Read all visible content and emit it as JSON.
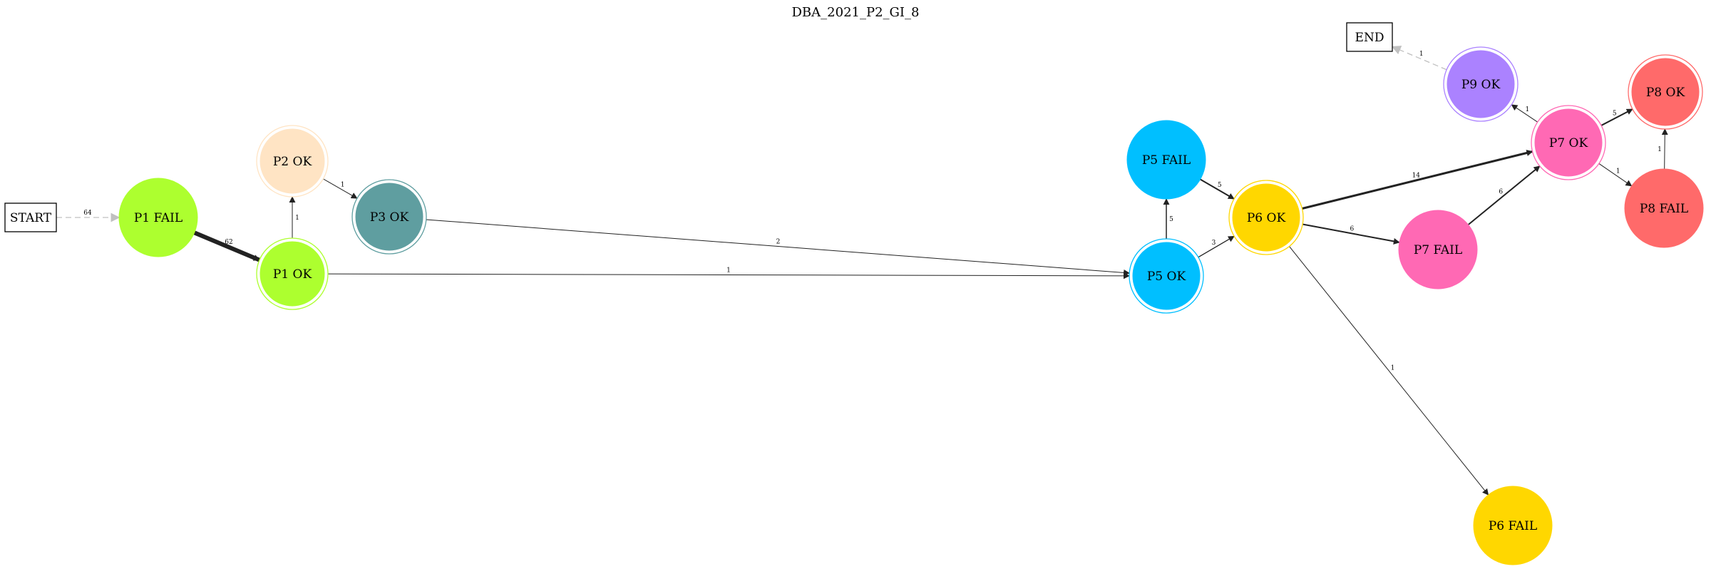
{
  "title": "DBA_2021_P2_GI_8",
  "colors": {
    "p1": "#adff2f",
    "p2": "#ffe4c4",
    "p3": "#5f9ea0",
    "p5": "#00bfff",
    "p6": "#ffd700",
    "p7": "#ff69b4",
    "p8": "#ff6a6a",
    "p9": "#ab82ff",
    "edge": "#222222",
    "terminal_edge": "#c0c0c0"
  },
  "nodes": {
    "start": {
      "label": "START",
      "shape": "box"
    },
    "end": {
      "label": "END",
      "shape": "box"
    },
    "p1_fail": {
      "label": "P1 FAIL",
      "shape": "circle",
      "color": "p1"
    },
    "p1_ok": {
      "label": "P1 OK",
      "shape": "doublecircle",
      "color": "p1"
    },
    "p2_ok": {
      "label": "P2 OK",
      "shape": "doublecircle",
      "color": "p2"
    },
    "p3_ok": {
      "label": "P3 OK",
      "shape": "doublecircle",
      "color": "p3"
    },
    "p5_fail": {
      "label": "P5 FAIL",
      "shape": "circle",
      "color": "p5"
    },
    "p5_ok": {
      "label": "P5 OK",
      "shape": "doublecircle",
      "color": "p5"
    },
    "p6_ok": {
      "label": "P6 OK",
      "shape": "doublecircle",
      "color": "p6"
    },
    "p6_fail": {
      "label": "P6 FAIL",
      "shape": "circle",
      "color": "p6"
    },
    "p7_fail": {
      "label": "P7 FAIL",
      "shape": "circle",
      "color": "p7"
    },
    "p7_ok": {
      "label": "P7 OK",
      "shape": "doublecircle",
      "color": "p7"
    },
    "p8_ok": {
      "label": "P8 OK",
      "shape": "doublecircle",
      "color": "p8"
    },
    "p8_fail": {
      "label": "P8 FAIL",
      "shape": "circle",
      "color": "p8"
    },
    "p9_ok": {
      "label": "P9 OK",
      "shape": "doublecircle",
      "color": "p9"
    }
  },
  "edges": [
    {
      "from": "start",
      "to": "p1_fail",
      "label": "64",
      "style": "dashed"
    },
    {
      "from": "p1_fail",
      "to": "p1_ok",
      "label": "62",
      "weight": 6
    },
    {
      "from": "p1_ok",
      "to": "p2_ok",
      "label": "1",
      "weight": 1
    },
    {
      "from": "p2_ok",
      "to": "p3_ok",
      "label": "1",
      "weight": 1
    },
    {
      "from": "p3_ok",
      "to": "p5_ok",
      "label": "2",
      "weight": 1
    },
    {
      "from": "p1_ok",
      "to": "p5_ok",
      "label": "1",
      "weight": 1
    },
    {
      "from": "p5_ok",
      "to": "p5_fail",
      "label": "5",
      "weight": 1.5
    },
    {
      "from": "p5_fail",
      "to": "p6_ok",
      "label": "5",
      "weight": 2
    },
    {
      "from": "p5_ok",
      "to": "p6_ok",
      "label": "3",
      "weight": 1.3
    },
    {
      "from": "p6_ok",
      "to": "p7_ok",
      "label": "14",
      "weight": 3
    },
    {
      "from": "p6_ok",
      "to": "p7_fail",
      "label": "6",
      "weight": 2
    },
    {
      "from": "p6_ok",
      "to": "p6_fail",
      "label": "1",
      "weight": 1
    },
    {
      "from": "p7_fail",
      "to": "p7_ok",
      "label": "6",
      "weight": 2
    },
    {
      "from": "p7_ok",
      "to": "p9_ok",
      "label": "1",
      "weight": 1
    },
    {
      "from": "p7_ok",
      "to": "p8_ok",
      "label": "5",
      "weight": 2
    },
    {
      "from": "p7_ok",
      "to": "p8_fail",
      "label": "1",
      "weight": 1
    },
    {
      "from": "p8_fail",
      "to": "p8_ok",
      "label": "1",
      "weight": 1
    },
    {
      "from": "p9_ok",
      "to": "end",
      "label": "1",
      "style": "dashed"
    }
  ]
}
